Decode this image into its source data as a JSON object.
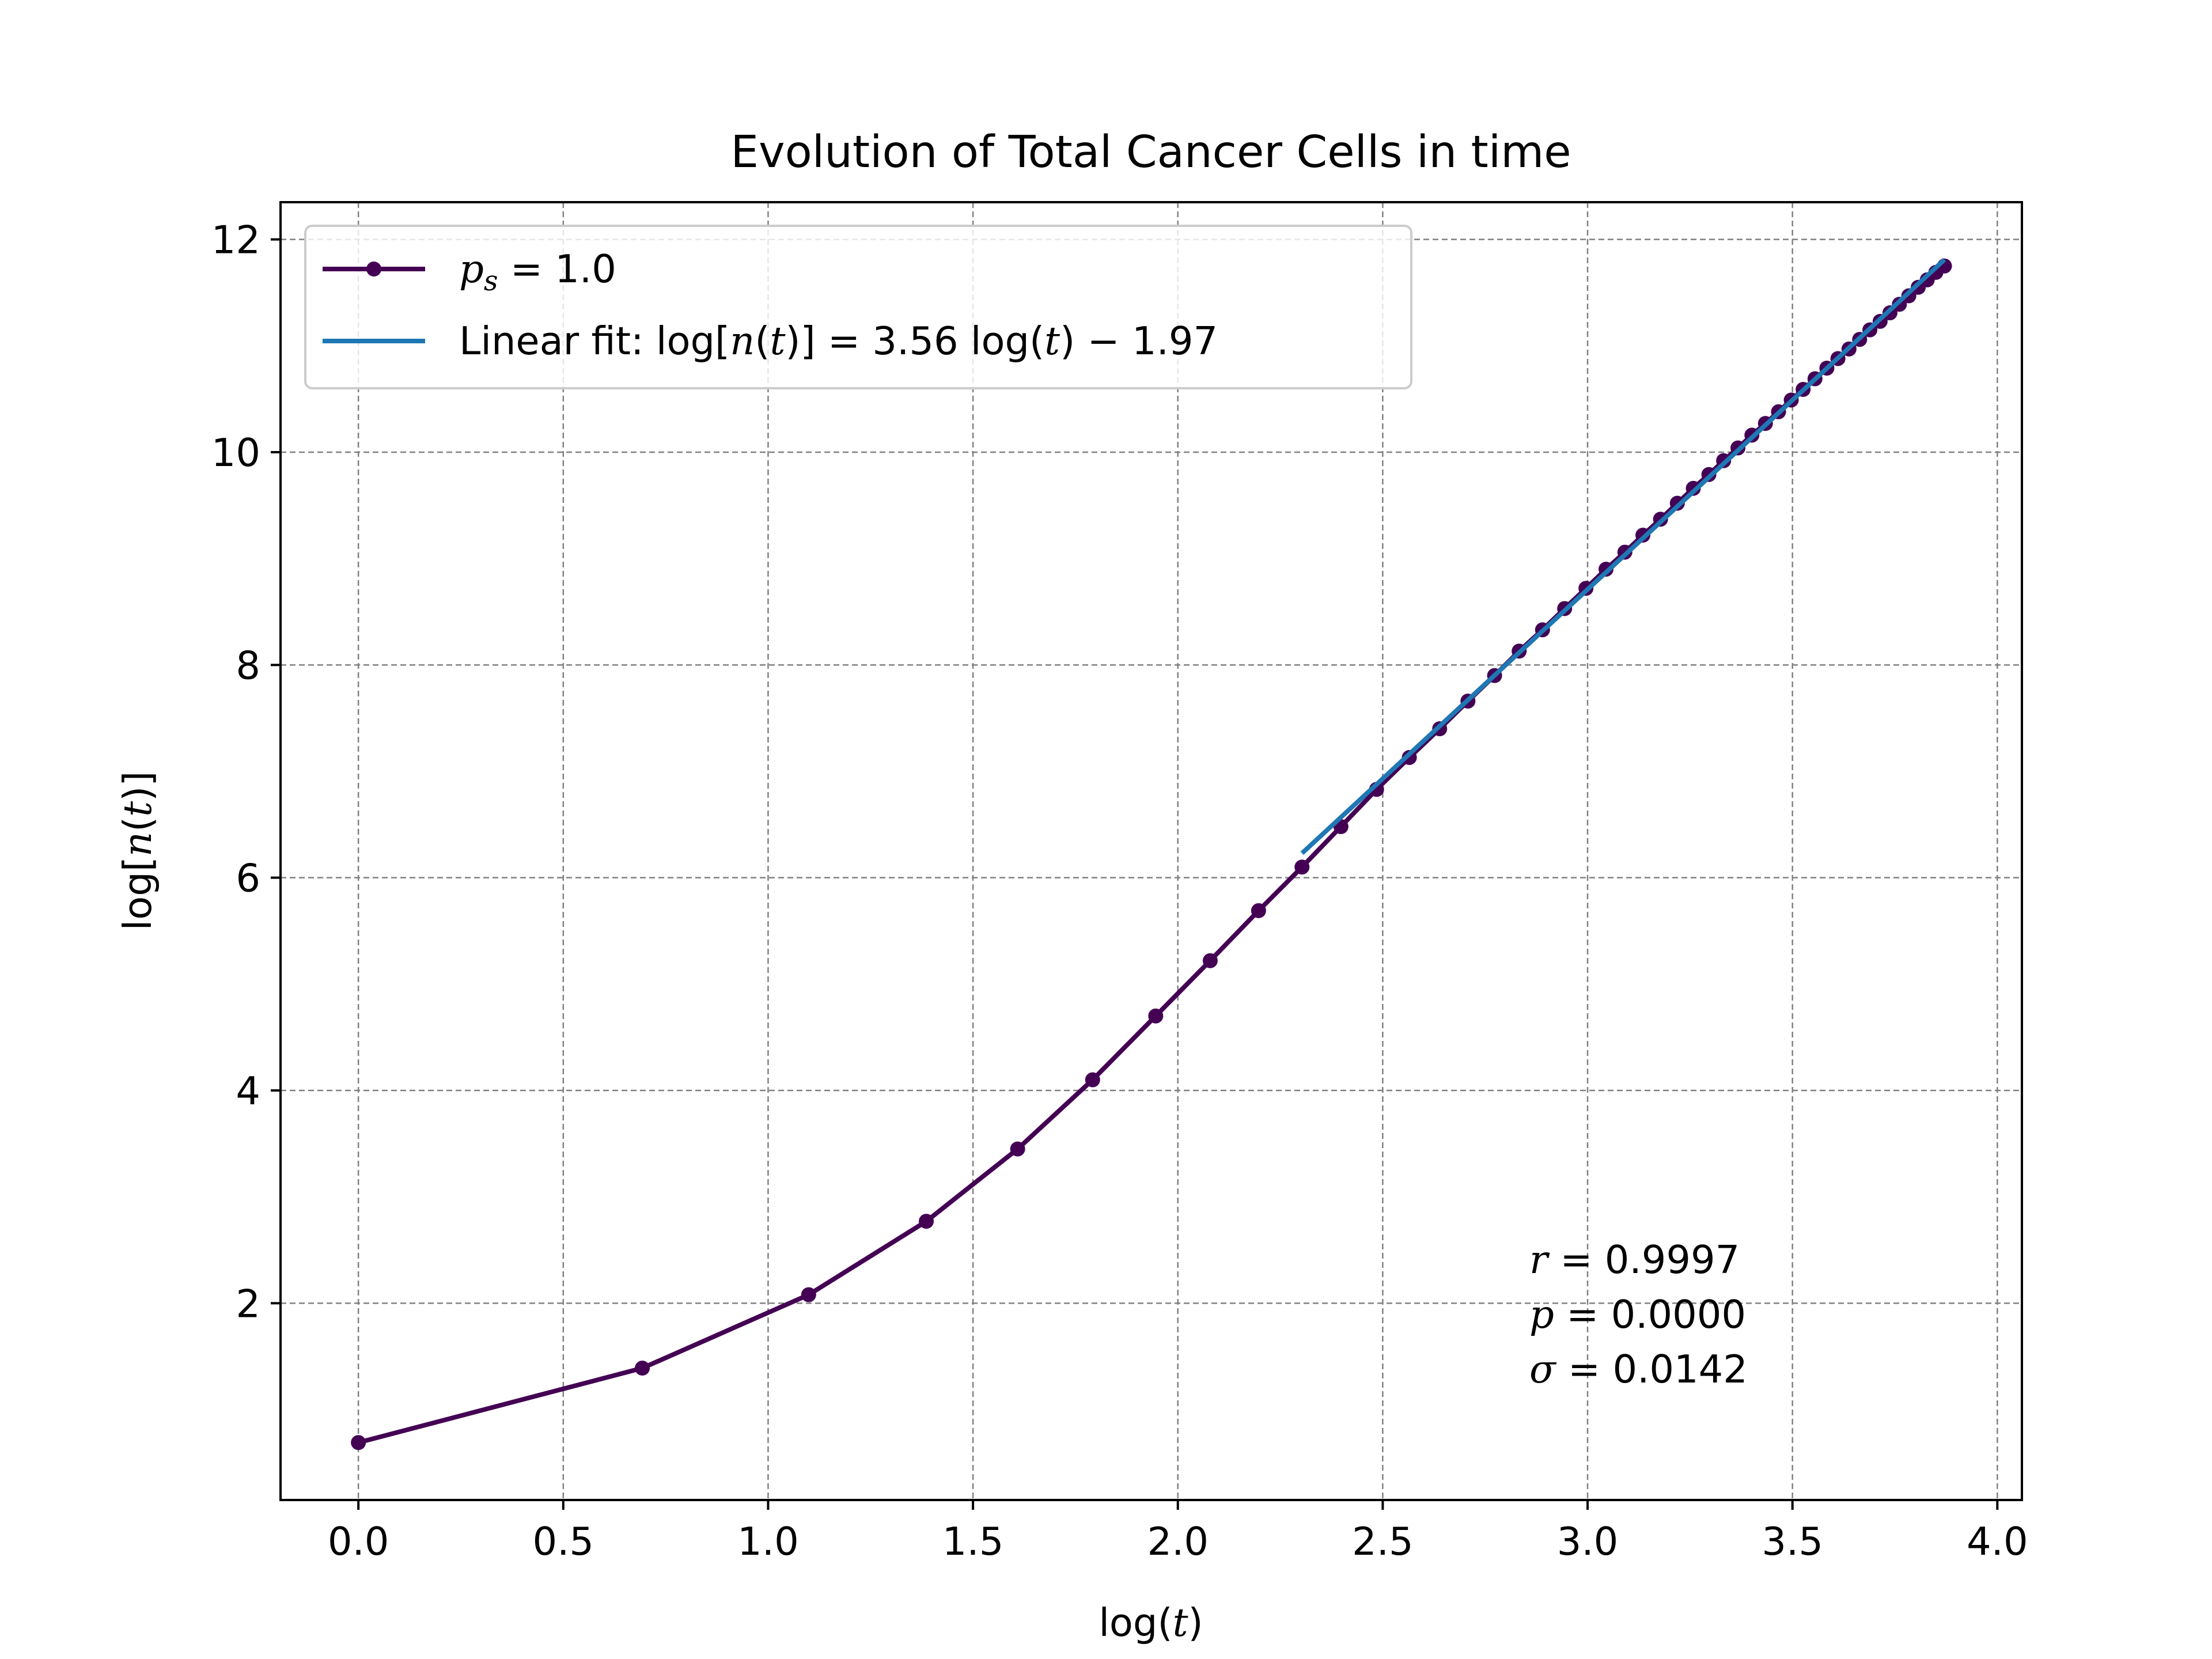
{
  "chart_data": {
    "type": "line",
    "title": "Evolution of Total Cancer Cells in time",
    "xlabel": "log(t)",
    "ylabel": "log[n(t)]",
    "xlim": [
      -0.19,
      4.06
    ],
    "ylim": [
      0.15,
      12.35
    ],
    "xticks": [
      0.0,
      0.5,
      1.0,
      1.5,
      2.0,
      2.5,
      3.0,
      3.5,
      4.0
    ],
    "xtick_labels": [
      "0.0",
      "0.5",
      "1.0",
      "1.5",
      "2.0",
      "2.5",
      "3.0",
      "3.5",
      "4.0"
    ],
    "yticks": [
      2,
      4,
      6,
      8,
      10,
      12
    ],
    "ytick_labels": [
      "2",
      "4",
      "6",
      "8",
      "10",
      "12"
    ],
    "grid": true,
    "legend_position": "upper-left",
    "series": [
      {
        "name": "p_s = 1.0",
        "color": "#440154",
        "marker": "circle",
        "x": [
          0.0,
          0.693,
          1.099,
          1.386,
          1.609,
          1.792,
          1.946,
          2.079,
          2.197,
          2.303,
          2.398,
          2.485,
          2.565,
          2.639,
          2.708,
          2.773,
          2.833,
          2.89,
          2.944,
          2.996,
          3.045,
          3.091,
          3.135,
          3.178,
          3.219,
          3.258,
          3.296,
          3.332,
          3.367,
          3.401,
          3.434,
          3.466,
          3.497,
          3.526,
          3.555,
          3.584,
          3.611,
          3.638,
          3.664,
          3.689,
          3.714,
          3.738,
          3.761,
          3.784,
          3.807,
          3.829,
          3.85,
          3.871
        ],
        "y": [
          0.69,
          1.39,
          2.08,
          2.77,
          3.45,
          4.1,
          4.7,
          5.22,
          5.69,
          6.1,
          6.48,
          6.83,
          7.13,
          7.4,
          7.66,
          7.9,
          8.13,
          8.33,
          8.53,
          8.72,
          8.9,
          9.06,
          9.22,
          9.37,
          9.52,
          9.66,
          9.79,
          9.92,
          10.04,
          10.16,
          10.27,
          10.38,
          10.49,
          10.59,
          10.69,
          10.79,
          10.88,
          10.97,
          11.06,
          11.15,
          11.23,
          11.31,
          11.39,
          11.47,
          11.55,
          11.62,
          11.69,
          11.75
        ]
      },
      {
        "name": "Linear fit: log[n(t)] = 3.56 log(t) - 1.97",
        "color": "#1f77b4",
        "marker": "none",
        "x": [
          2.303,
          3.871
        ],
        "y": [
          6.23,
          11.81
        ]
      }
    ],
    "legend": [
      {
        "label": "p_s = 1.0",
        "color": "#440154"
      },
      {
        "label": "Linear fit: log[n(t)] = 3.56 log(t) - 1.97",
        "color": "#1f77b4"
      }
    ],
    "annotations": [
      {
        "symbol": "r",
        "text": " = 0.9997"
      },
      {
        "symbol": "p",
        "text": " = 0.0000"
      },
      {
        "symbol": "σ",
        "text": " = 0.0142"
      }
    ]
  }
}
